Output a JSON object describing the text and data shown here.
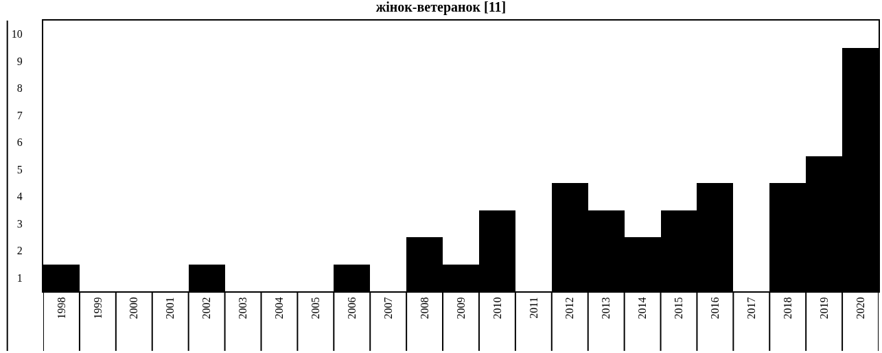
{
  "chart_data": {
    "type": "bar",
    "title": "жінок-ветеранок [11]",
    "categories": [
      "1998",
      "1999",
      "2000",
      "2001",
      "2002",
      "2003",
      "2004",
      "2005",
      "2006",
      "2007",
      "2008",
      "2009",
      "2010",
      "2011",
      "2012",
      "2013",
      "2014",
      "2015",
      "2016",
      "2017",
      "2018",
      "2019",
      "2020"
    ],
    "values": [
      1,
      0,
      0,
      0,
      1,
      0,
      0,
      0,
      1,
      0,
      2,
      1,
      3,
      0,
      4,
      3,
      2,
      3,
      4,
      0,
      4,
      5,
      9
    ],
    "color": "#000000",
    "ylim": [
      0,
      10
    ],
    "yticks": [
      {
        "value": 0.5,
        "label": "1"
      },
      {
        "value": 1.5,
        "label": "2"
      },
      {
        "value": 2.5,
        "label": "3"
      },
      {
        "value": 3.5,
        "label": "4"
      },
      {
        "value": 4.5,
        "label": "5"
      },
      {
        "value": 5.5,
        "label": "6"
      },
      {
        "value": 6.5,
        "label": "7"
      },
      {
        "value": 7.5,
        "label": "8"
      },
      {
        "value": 8.5,
        "label": "9"
      },
      {
        "value": 9.5,
        "label": "10"
      }
    ],
    "grid": false
  }
}
